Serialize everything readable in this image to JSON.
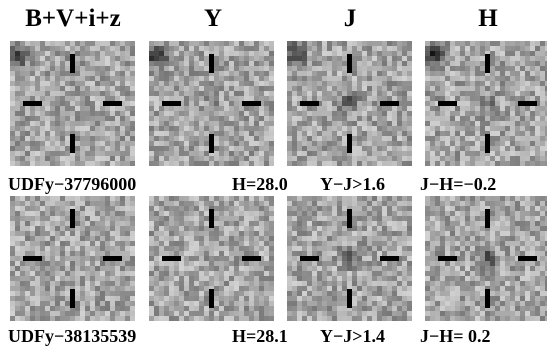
{
  "bands": [
    "B+V+i+z",
    "Y",
    "J",
    "H"
  ],
  "objects": [
    {
      "id": "UDFy−37796000",
      "mag": "H=28.0",
      "color1": "Y−J>1.6",
      "color2": "J−H=−0.2",
      "detections": {
        "B+V+i+z": "none",
        "Y": "faint",
        "J": "strong",
        "H": "moderate"
      }
    },
    {
      "id": "UDFy−38135539",
      "mag": "H=28.1",
      "color1": "Y−J>1.4",
      "color2": "J−H= 0.2",
      "detections": {
        "B+V+i+z": "none",
        "Y": "none",
        "J": "strong",
        "H": "strong"
      }
    }
  ],
  "colors": {
    "background": "#ffffff",
    "noise_base": "#b4b4b4",
    "marker": "#000000"
  }
}
